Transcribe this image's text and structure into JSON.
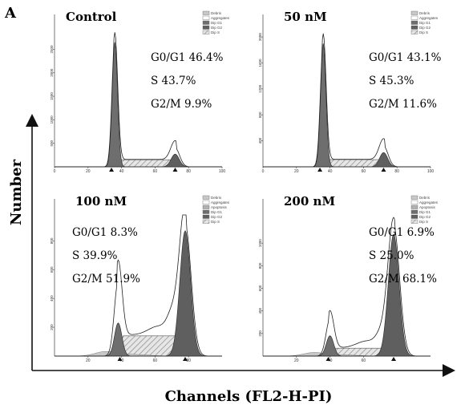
{
  "figure": {
    "label": "A",
    "ylabel": "Number",
    "xlabel": "Channels (FL2-H-PI)"
  },
  "colors": {
    "dip_g1": "#6e6e6e",
    "dip_g2": "#5f5f5f",
    "dip_s_hatch": "#8a8a8a",
    "outline": "#222222",
    "debris": "#c8c8c8",
    "aggregates": "#ffffff",
    "apoptosis": "#b0b0b0"
  },
  "chart_data": [
    {
      "type": "area",
      "title": "Control",
      "stats": [
        "G0/G1 46.4%",
        "S 43.7%",
        "G2/M 9.9%"
      ],
      "legend": [
        "Debris",
        "Aggregates",
        "Dip G1",
        "Dip G2",
        "Dip S"
      ],
      "x_ticks": [
        "0",
        "20",
        "40",
        "60",
        "80",
        "100"
      ],
      "y_ticks": [
        "500",
        "1000",
        "1500",
        "2000",
        "2500"
      ],
      "xlim": [
        0,
        100
      ],
      "ylim": [
        0,
        2900
      ],
      "g1_peak": {
        "x": 36,
        "y": 2650
      },
      "g2_peak": {
        "x": 72,
        "y": 270
      },
      "s_level": 150,
      "outline_g2_peak": 400,
      "markers": [
        34,
        72
      ]
    },
    {
      "type": "area",
      "title": "50 nM",
      "stats": [
        "G0/G1 43.1%",
        "S 45.3%",
        "G2/M 11.6%"
      ],
      "legend": [
        "Debris",
        "Aggregates",
        "Dip G1",
        "Dip G2",
        "Dip S"
      ],
      "x_ticks": [
        "0",
        "20",
        "40",
        "60",
        "80",
        "100"
      ],
      "y_ticks": [
        "400",
        "800",
        "1200",
        "1600",
        "2000"
      ],
      "xlim": [
        0,
        100
      ],
      "ylim": [
        0,
        2100
      ],
      "g1_peak": {
        "x": 36,
        "y": 1900
      },
      "g2_peak": {
        "x": 72,
        "y": 220
      },
      "s_level": 110,
      "outline_g2_peak": 320,
      "markers": [
        34,
        72
      ]
    },
    {
      "type": "area",
      "title": "100 nM",
      "stats": [
        "G0/G1 8.3%",
        "S 39.9%",
        "G2/M 51.9%"
      ],
      "legend": [
        "Debris",
        "Aggregates",
        "Apoptosis",
        "Dip G1",
        "Dip G2",
        "Dip S"
      ],
      "x_ticks": [
        "20",
        "40",
        "60",
        "80"
      ],
      "y_ticks": [
        "200",
        "400",
        "600",
        "800"
      ],
      "xlim": [
        0,
        100
      ],
      "ylim": [
        0,
        980
      ],
      "g1_peak": {
        "x": 38,
        "y": 230
      },
      "g2_peak": {
        "x": 78,
        "y": 870
      },
      "s_level": 140,
      "outline_g1_peak": 520,
      "outline_g2_peak": 910,
      "markers": [
        39,
        78
      ]
    },
    {
      "type": "area",
      "title": "200 nM",
      "stats": [
        "G0/G1 6.9%",
        "S 25.0%",
        "G2/M 68.1%"
      ],
      "legend": [
        "Debris",
        "Aggregates",
        "Apoptosis",
        "Dip G1",
        "Dip G2",
        "Dip S"
      ],
      "x_ticks": [
        "20",
        "40",
        "60"
      ],
      "y_ticks": [
        "200",
        "400",
        "600",
        "800",
        "1000"
      ],
      "xlim": [
        0,
        100
      ],
      "ylim": [
        0,
        1250
      ],
      "g1_peak": {
        "x": 40,
        "y": 180
      },
      "g2_peak": {
        "x": 78,
        "y": 1080
      },
      "s_level": 70,
      "outline_g1_peak": 330,
      "outline_g2_peak": 1150,
      "markers": [
        39,
        78
      ]
    }
  ]
}
